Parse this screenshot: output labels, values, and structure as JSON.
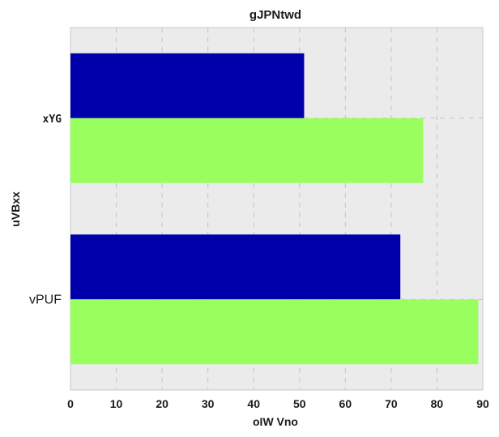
{
  "chart_data": {
    "type": "bar",
    "orientation": "horizontal",
    "title": "gJPNtwd",
    "xlabel": "oIW Vno",
    "ylabel": "uVBxx",
    "categories": [
      "xYG",
      "vPUF"
    ],
    "series": [
      {
        "values": [
          51,
          72
        ],
        "color": "#0000aa"
      },
      {
        "values": [
          77,
          89
        ],
        "color": "#99ff5e"
      }
    ],
    "xlim": [
      0,
      90
    ],
    "xticks": [
      0,
      10,
      20,
      30,
      40,
      50,
      60,
      70,
      80,
      90
    ],
    "grid": true,
    "grid_style": "dashed",
    "background": "#ebebeb"
  }
}
